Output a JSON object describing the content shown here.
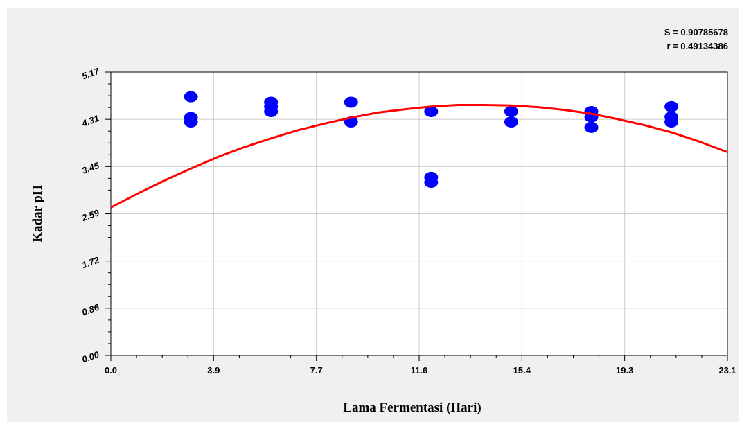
{
  "stats": {
    "s_text": "S = 0.90785678",
    "r_text": "r = 0.49134386"
  },
  "chart_data": {
    "type": "scatter",
    "xlabel": "Lama Fermentasi (Hari)",
    "ylabel": "Kadar pH",
    "xlim": [
      0.0,
      23.1
    ],
    "ylim": [
      0.0,
      5.17
    ],
    "x_ticks": [
      "0.0",
      "3.9",
      "7.7",
      "11.6",
      "15.4",
      "19.3",
      "23.1"
    ],
    "y_ticks": [
      "0.00",
      "0.86",
      "1.72",
      "2.59",
      "3.45",
      "4.31",
      "5.17"
    ],
    "grid": true,
    "series": [
      {
        "kind": "points",
        "color": "#0000ff",
        "points": [
          [
            3.0,
            4.72
          ],
          [
            3.0,
            4.34
          ],
          [
            3.0,
            4.26
          ],
          [
            6.0,
            4.62
          ],
          [
            6.0,
            4.54
          ],
          [
            6.0,
            4.45
          ],
          [
            9.0,
            4.62
          ],
          [
            9.0,
            4.26
          ],
          [
            12.0,
            4.45
          ],
          [
            12.0,
            3.25
          ],
          [
            12.0,
            3.16
          ],
          [
            15.0,
            4.45
          ],
          [
            15.0,
            4.26
          ],
          [
            18.0,
            4.45
          ],
          [
            18.0,
            4.35
          ],
          [
            18.0,
            4.16
          ],
          [
            21.0,
            4.54
          ],
          [
            21.0,
            4.35
          ],
          [
            21.0,
            4.26
          ]
        ]
      },
      {
        "kind": "curve",
        "color": "#ff0000",
        "points": [
          [
            0.0,
            2.7
          ],
          [
            1.0,
            2.95
          ],
          [
            2.0,
            3.19
          ],
          [
            3.0,
            3.41
          ],
          [
            4.0,
            3.62
          ],
          [
            5.0,
            3.8
          ],
          [
            6.0,
            3.96
          ],
          [
            7.0,
            4.11
          ],
          [
            8.0,
            4.23
          ],
          [
            9.0,
            4.34
          ],
          [
            10.0,
            4.43
          ],
          [
            11.0,
            4.49
          ],
          [
            12.0,
            4.54
          ],
          [
            13.0,
            4.57
          ],
          [
            14.0,
            4.57
          ],
          [
            15.0,
            4.56
          ],
          [
            16.0,
            4.53
          ],
          [
            17.0,
            4.48
          ],
          [
            18.0,
            4.41
          ],
          [
            19.0,
            4.31
          ],
          [
            20.0,
            4.2
          ],
          [
            21.0,
            4.07
          ],
          [
            22.0,
            3.91
          ],
          [
            23.1,
            3.71
          ]
        ]
      }
    ]
  }
}
